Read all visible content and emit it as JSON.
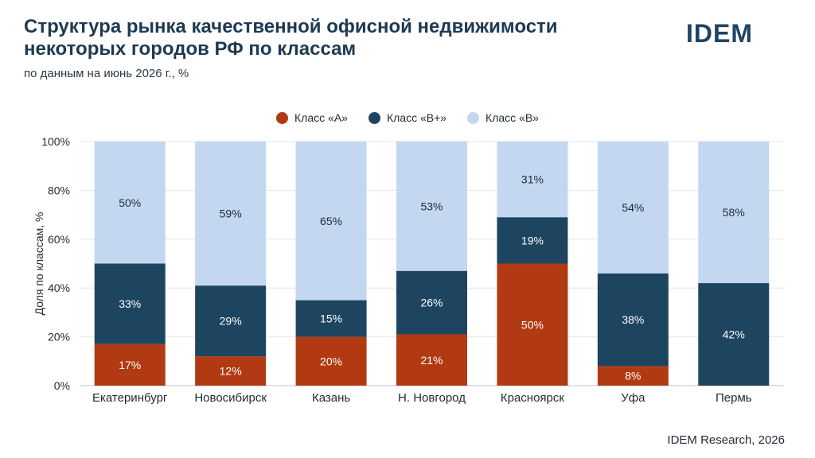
{
  "header": {
    "title": "Структура рынка качественной офисной недвижимости некоторых городов РФ по классам",
    "subtitle": "по данным на июнь 2026 г., %",
    "logo": "IDEM"
  },
  "footer": {
    "source": "IDEM Research, 2026"
  },
  "colors": {
    "a": "#b23a12",
    "bplus": "#1e4560",
    "b": "#c3d7f0"
  },
  "chart_data": {
    "type": "bar",
    "stacked": true,
    "categories": [
      "Екатеринбург",
      "Новосибирск",
      "Казань",
      "Н. Новгород",
      "Красноярск",
      "Уфа",
      "Пермь"
    ],
    "series": [
      {
        "name": "Класс «А»",
        "color": "#b23a12",
        "values": [
          17,
          12,
          20,
          21,
          50,
          8,
          0
        ],
        "labels": [
          "17%",
          "12%",
          "20%",
          "21%",
          "50%",
          "8%",
          ""
        ]
      },
      {
        "name": "Класс «В+»",
        "color": "#1e4560",
        "values": [
          33,
          29,
          15,
          26,
          19,
          38,
          42
        ],
        "labels": [
          "33%",
          "29%",
          "15%",
          "26%",
          "19%",
          "38%",
          "42%"
        ]
      },
      {
        "name": "Класс «В»",
        "color": "#c3d7f0",
        "values": [
          50,
          59,
          65,
          53,
          31,
          54,
          58
        ],
        "labels": [
          "50%",
          "59%",
          "65%",
          "53%",
          "31%",
          "54%",
          "58%"
        ]
      }
    ],
    "ylabel": "Доля по классам, %",
    "ylim": [
      0,
      100
    ],
    "yticks": [
      0,
      20,
      40,
      60,
      80,
      100
    ],
    "ytick_labels": [
      "0%",
      "20%",
      "40%",
      "60%",
      "80%",
      "100%"
    ],
    "grid": true,
    "legend_position": "top-center"
  }
}
